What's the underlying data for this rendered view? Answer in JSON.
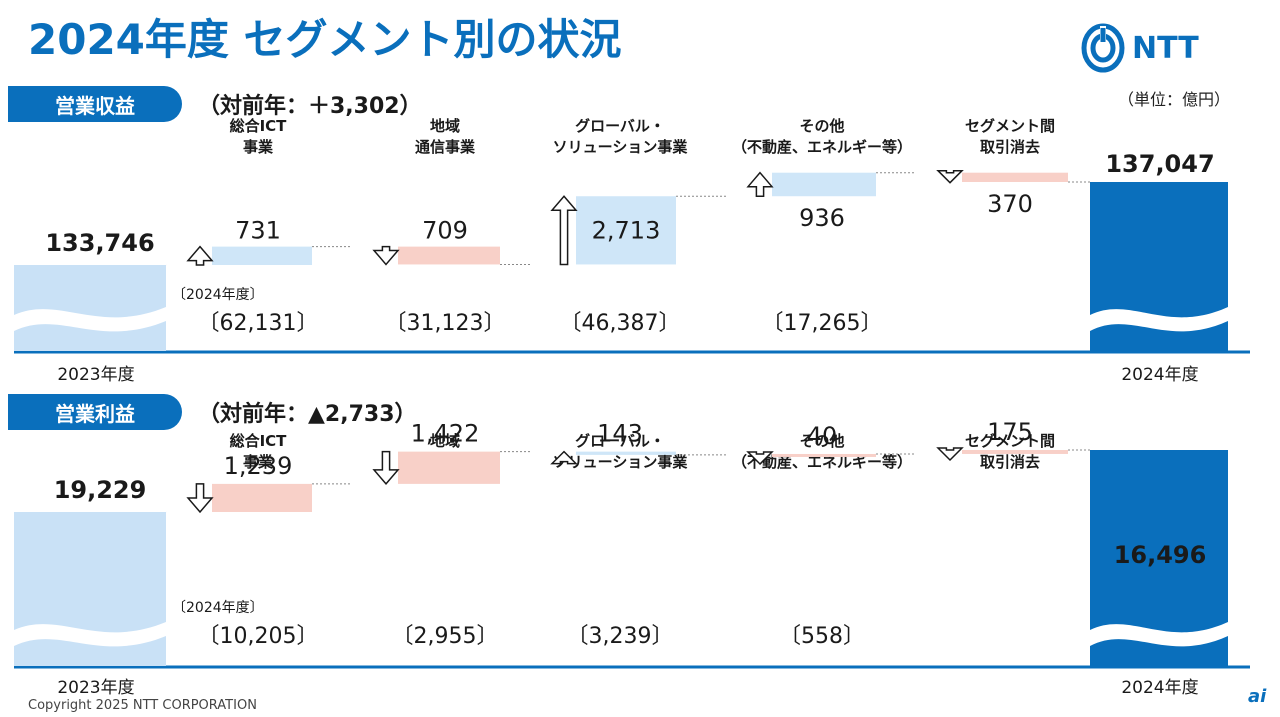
{
  "title": "2024年度 セグメント別の状況",
  "logo_text": "NTT",
  "unit": "（単位：億円）",
  "footer": "Copyright 2025 NTT CORPORATION",
  "corner_mark": "ai",
  "colors": {
    "brand": "#0a6fbc",
    "increase": "#cfe6f8",
    "decrease": "#f8d0c8",
    "start_bar": "#c9e1f6",
    "baseline": "#0a6fbc"
  },
  "icons": [
    "ntt-logo-icon",
    "up-arrow-icon",
    "down-arrow-icon",
    "wave-icon"
  ],
  "sections": [
    {
      "label": "営業収益",
      "yoy": "（対前年：＋3,302）"
    },
    {
      "label": "営業利益",
      "yoy": "（対前年：▲2,733）"
    }
  ],
  "chart_data": [
    {
      "type": "bar",
      "title": "営業収益",
      "categories": [
        "2023年度",
        "総合ICT\n事業",
        "地域\n通信事業",
        "グローバル・\nソリューション事業",
        "その他\n（不動産、エネルギー等）",
        "セグメント間\n取引消去",
        "2024年度"
      ],
      "start": {
        "label": "2023年度",
        "value": 133746,
        "value_label": "133,746"
      },
      "end": {
        "label": "2024年度",
        "value": 137047,
        "value_label": "137,047"
      },
      "changes": [
        {
          "value": 731,
          "value_label": "731",
          "direction": "up"
        },
        {
          "value": -709,
          "value_label": "709",
          "direction": "down"
        },
        {
          "value": 2713,
          "value_label": "2,713",
          "direction": "up"
        },
        {
          "value": 936,
          "value_label": "936",
          "direction": "up"
        },
        {
          "value": -370,
          "value_label": "370",
          "direction": "down"
        }
      ],
      "fy2024_note": "〔2024年度〕",
      "fy2024_totals": [
        "〔62,131〕",
        "〔31,123〕",
        "〔46,387〕",
        "〔17,265〕"
      ]
    },
    {
      "type": "bar",
      "title": "営業利益",
      "categories": [
        "2023年度",
        "総合ICT\n事業",
        "地域\n通信事業",
        "グローバル・\nソリューション事業",
        "その他\n（不動産、エネルギー等）",
        "セグメント間\n取引消去",
        "2024年度"
      ],
      "start": {
        "label": "2023年度",
        "value": 19229,
        "value_label": "19,229"
      },
      "end": {
        "label": "2024年度",
        "value": 16496,
        "value_label": "16,496"
      },
      "changes": [
        {
          "value": -1239,
          "value_label": "1,239",
          "direction": "down"
        },
        {
          "value": -1422,
          "value_label": "1,422",
          "direction": "down"
        },
        {
          "value": 143,
          "value_label": "143",
          "direction": "up"
        },
        {
          "value": -40,
          "value_label": "40",
          "direction": "down"
        },
        {
          "value": -175,
          "value_label": "175",
          "direction": "down"
        }
      ],
      "fy2024_note": "〔2024年度〕",
      "fy2024_totals": [
        "〔10,205〕",
        "〔2,955〕",
        "〔3,239〕",
        "〔558〕"
      ]
    }
  ]
}
